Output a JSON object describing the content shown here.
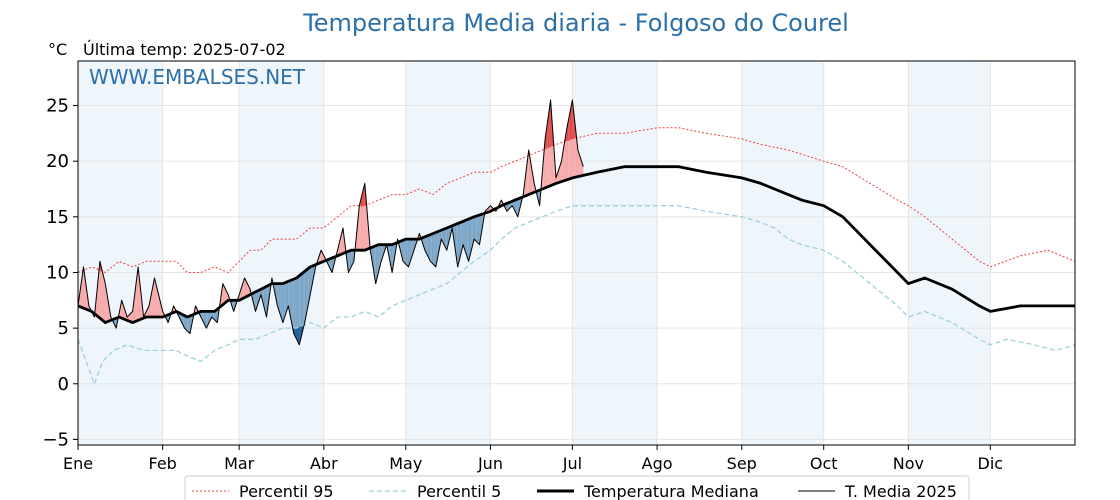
{
  "chart_data": {
    "type": "line",
    "title": "Temperatura Media diaria - Folgoso do Courel",
    "unit_label": "°C",
    "last_temp_label": "Última temp: 2025-07-02",
    "watermark": "WWW.EMBALSES.NET",
    "x_ticks": [
      "Ene",
      "Feb",
      "Mar",
      "Abr",
      "May",
      "Jun",
      "Jul",
      "Ago",
      "Sep",
      "Oct",
      "Nov",
      "Dic"
    ],
    "month_start_days": [
      0,
      31,
      59,
      90,
      120,
      151,
      181,
      212,
      243,
      273,
      304,
      334
    ],
    "xlim": [
      0,
      365
    ],
    "ylim": [
      -5.5,
      29
    ],
    "y_ticks": [
      -5,
      0,
      5,
      10,
      15,
      20,
      25
    ],
    "grid": true,
    "legend_position": "bottom-center",
    "colors": {
      "p95": "#e8423c",
      "p5": "#9fd0de",
      "median": "#000000",
      "current": "#000000",
      "above_fill": "#f7a8a8",
      "above_fill_extreme": "#e04a4a",
      "below_fill": "#7aa4c6",
      "below_fill_extreme": "#1f5b8e",
      "band": "#eef5fb",
      "title": "#2d6fa7"
    },
    "series": [
      {
        "name": "Percentil 95",
        "style": "dotted-red",
        "points": [
          [
            0,
            10
          ],
          [
            5,
            10.5
          ],
          [
            10,
            10
          ],
          [
            15,
            11
          ],
          [
            20,
            10.5
          ],
          [
            25,
            11
          ],
          [
            31,
            11
          ],
          [
            36,
            11
          ],
          [
            40,
            10
          ],
          [
            45,
            10
          ],
          [
            50,
            10.5
          ],
          [
            55,
            10
          ],
          [
            59,
            11
          ],
          [
            63,
            12
          ],
          [
            67,
            12
          ],
          [
            71,
            13
          ],
          [
            75,
            13
          ],
          [
            80,
            13
          ],
          [
            85,
            14
          ],
          [
            90,
            14
          ],
          [
            95,
            15
          ],
          [
            100,
            16
          ],
          [
            105,
            16
          ],
          [
            110,
            16.5
          ],
          [
            115,
            17
          ],
          [
            120,
            17
          ],
          [
            125,
            17.5
          ],
          [
            130,
            17
          ],
          [
            135,
            18
          ],
          [
            140,
            18.5
          ],
          [
            145,
            19
          ],
          [
            151,
            19
          ],
          [
            155,
            19.5
          ],
          [
            160,
            20
          ],
          [
            165,
            20.5
          ],
          [
            170,
            21
          ],
          [
            175,
            21.5
          ],
          [
            181,
            22
          ],
          [
            190,
            22.5
          ],
          [
            200,
            22.5
          ],
          [
            212,
            23
          ],
          [
            220,
            23
          ],
          [
            230,
            22.5
          ],
          [
            243,
            22
          ],
          [
            250,
            21.5
          ],
          [
            260,
            21
          ],
          [
            273,
            20
          ],
          [
            280,
            19.5
          ],
          [
            290,
            18
          ],
          [
            300,
            16.5
          ],
          [
            304,
            16
          ],
          [
            310,
            15
          ],
          [
            320,
            13
          ],
          [
            330,
            11
          ],
          [
            334,
            10.5
          ],
          [
            345,
            11.5
          ],
          [
            355,
            12
          ],
          [
            365,
            11
          ]
        ]
      },
      {
        "name": "Percentil 5",
        "style": "dashed-lightblue",
        "points": [
          [
            0,
            4
          ],
          [
            3,
            2
          ],
          [
            6,
            0
          ],
          [
            9,
            2
          ],
          [
            13,
            3
          ],
          [
            18,
            3.5
          ],
          [
            24,
            3
          ],
          [
            31,
            3
          ],
          [
            36,
            3
          ],
          [
            40,
            2.5
          ],
          [
            45,
            2
          ],
          [
            50,
            3
          ],
          [
            55,
            3.5
          ],
          [
            59,
            4
          ],
          [
            65,
            4
          ],
          [
            70,
            4.5
          ],
          [
            75,
            5
          ],
          [
            80,
            5
          ],
          [
            85,
            5.5
          ],
          [
            90,
            5
          ],
          [
            95,
            6
          ],
          [
            100,
            6
          ],
          [
            105,
            6.5
          ],
          [
            110,
            6
          ],
          [
            115,
            7
          ],
          [
            120,
            7.5
          ],
          [
            125,
            8
          ],
          [
            130,
            8.5
          ],
          [
            135,
            9
          ],
          [
            140,
            10
          ],
          [
            145,
            11
          ],
          [
            151,
            12
          ],
          [
            155,
            13
          ],
          [
            160,
            14
          ],
          [
            165,
            14.5
          ],
          [
            170,
            15
          ],
          [
            175,
            15.5
          ],
          [
            181,
            16
          ],
          [
            190,
            16
          ],
          [
            200,
            16
          ],
          [
            212,
            16
          ],
          [
            220,
            16
          ],
          [
            230,
            15.5
          ],
          [
            243,
            15
          ],
          [
            250,
            14.5
          ],
          [
            255,
            14
          ],
          [
            260,
            13
          ],
          [
            265,
            12.5
          ],
          [
            273,
            12
          ],
          [
            280,
            11
          ],
          [
            290,
            9
          ],
          [
            300,
            7
          ],
          [
            304,
            6
          ],
          [
            310,
            6.5
          ],
          [
            320,
            5.5
          ],
          [
            330,
            4
          ],
          [
            334,
            3.5
          ],
          [
            340,
            4
          ],
          [
            350,
            3.5
          ],
          [
            358,
            3
          ],
          [
            365,
            3.5
          ]
        ]
      },
      {
        "name": "Temperatura Mediana",
        "style": "thick-black",
        "points": [
          [
            0,
            7
          ],
          [
            5,
            6.5
          ],
          [
            10,
            5.5
          ],
          [
            15,
            6
          ],
          [
            20,
            5.5
          ],
          [
            25,
            6
          ],
          [
            31,
            6
          ],
          [
            36,
            6.5
          ],
          [
            40,
            6
          ],
          [
            45,
            6.5
          ],
          [
            50,
            6.5
          ],
          [
            55,
            7.5
          ],
          [
            59,
            7.5
          ],
          [
            63,
            8
          ],
          [
            67,
            8.5
          ],
          [
            71,
            9
          ],
          [
            75,
            9
          ],
          [
            80,
            9.5
          ],
          [
            85,
            10.5
          ],
          [
            90,
            11
          ],
          [
            95,
            11.5
          ],
          [
            100,
            12
          ],
          [
            105,
            12
          ],
          [
            110,
            12.5
          ],
          [
            115,
            12.5
          ],
          [
            120,
            13
          ],
          [
            125,
            13
          ],
          [
            130,
            13.5
          ],
          [
            135,
            14
          ],
          [
            140,
            14.5
          ],
          [
            145,
            15
          ],
          [
            151,
            15.5
          ],
          [
            155,
            16
          ],
          [
            160,
            16.5
          ],
          [
            165,
            17
          ],
          [
            170,
            17.5
          ],
          [
            175,
            18
          ],
          [
            181,
            18.5
          ],
          [
            190,
            19
          ],
          [
            200,
            19.5
          ],
          [
            212,
            19.5
          ],
          [
            220,
            19.5
          ],
          [
            230,
            19
          ],
          [
            243,
            18.5
          ],
          [
            250,
            18
          ],
          [
            255,
            17.5
          ],
          [
            260,
            17
          ],
          [
            265,
            16.5
          ],
          [
            273,
            16
          ],
          [
            280,
            15
          ],
          [
            290,
            12.5
          ],
          [
            300,
            10
          ],
          [
            304,
            9
          ],
          [
            310,
            9.5
          ],
          [
            320,
            8.5
          ],
          [
            330,
            7
          ],
          [
            334,
            6.5
          ],
          [
            345,
            7
          ],
          [
            355,
            7
          ],
          [
            365,
            7
          ]
        ]
      },
      {
        "name": "T. Media 2025",
        "style": "thin-black",
        "points": [
          [
            0,
            7
          ],
          [
            2,
            10.5
          ],
          [
            4,
            7
          ],
          [
            6,
            6
          ],
          [
            8,
            11
          ],
          [
            10,
            9
          ],
          [
            12,
            6
          ],
          [
            14,
            5
          ],
          [
            16,
            7.5
          ],
          [
            18,
            6
          ],
          [
            20,
            6.5
          ],
          [
            22,
            10.5
          ],
          [
            24,
            6
          ],
          [
            26,
            7
          ],
          [
            28,
            9.5
          ],
          [
            31,
            6.5
          ],
          [
            33,
            5.5
          ],
          [
            35,
            7
          ],
          [
            37,
            6
          ],
          [
            39,
            5
          ],
          [
            41,
            4.5
          ],
          [
            43,
            7
          ],
          [
            45,
            6
          ],
          [
            47,
            5
          ],
          [
            49,
            6
          ],
          [
            51,
            5.5
          ],
          [
            53,
            9
          ],
          [
            55,
            8
          ],
          [
            57,
            6.5
          ],
          [
            59,
            8
          ],
          [
            61,
            9.5
          ],
          [
            63,
            8.5
          ],
          [
            65,
            6.5
          ],
          [
            67,
            8
          ],
          [
            69,
            6
          ],
          [
            71,
            9.5
          ],
          [
            73,
            7
          ],
          [
            75,
            5.5
          ],
          [
            77,
            7
          ],
          [
            79,
            4.5
          ],
          [
            81,
            3.5
          ],
          [
            83,
            5.5
          ],
          [
            85,
            8
          ],
          [
            87,
            10.5
          ],
          [
            89,
            12
          ],
          [
            91,
            11
          ],
          [
            93,
            10
          ],
          [
            95,
            12
          ],
          [
            97,
            14
          ],
          [
            99,
            10
          ],
          [
            101,
            11
          ],
          [
            103,
            16
          ],
          [
            105,
            18
          ],
          [
            107,
            12
          ],
          [
            109,
            9
          ],
          [
            111,
            11
          ],
          [
            113,
            12.5
          ],
          [
            115,
            10
          ],
          [
            117,
            13
          ],
          [
            119,
            11
          ],
          [
            121,
            10.5
          ],
          [
            123,
            12
          ],
          [
            125,
            13.5
          ],
          [
            127,
            12
          ],
          [
            129,
            11
          ],
          [
            131,
            10.5
          ],
          [
            133,
            13
          ],
          [
            135,
            12
          ],
          [
            137,
            14
          ],
          [
            139,
            10.5
          ],
          [
            141,
            12.5
          ],
          [
            143,
            11
          ],
          [
            145,
            13
          ],
          [
            147,
            12.5
          ],
          [
            149,
            15.5
          ],
          [
            151,
            16
          ],
          [
            153,
            15.5
          ],
          [
            155,
            16.5
          ],
          [
            157,
            15.5
          ],
          [
            159,
            16
          ],
          [
            161,
            15
          ],
          [
            163,
            17
          ],
          [
            165,
            21
          ],
          [
            167,
            18
          ],
          [
            169,
            16
          ],
          [
            171,
            22
          ],
          [
            173,
            25.5
          ],
          [
            175,
            18.5
          ],
          [
            177,
            20
          ],
          [
            179,
            23
          ],
          [
            181,
            25.5
          ],
          [
            183,
            21
          ],
          [
            185,
            19.5
          ]
        ]
      }
    ],
    "legend": [
      {
        "label": "Percentil 95",
        "style": "dotted-red"
      },
      {
        "label": "Percentil 5",
        "style": "dashed-lightblue"
      },
      {
        "label": "Temperatura Mediana",
        "style": "thick-black"
      },
      {
        "label": "T. Media 2025",
        "style": "thin-black"
      }
    ]
  }
}
